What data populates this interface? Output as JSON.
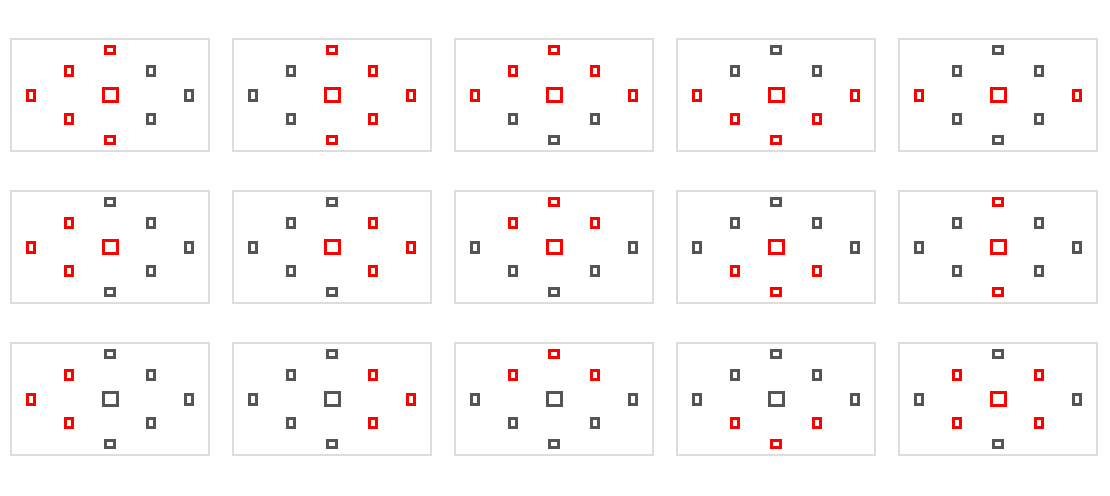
{
  "colors": {
    "active": "#ff0000",
    "inactive": "#555555",
    "panel_border": "#dddddd",
    "background": "#ffffff"
  },
  "point_names": [
    "top",
    "upper-left",
    "upper-right",
    "left",
    "center",
    "right",
    "lower-left",
    "lower-right",
    "bottom"
  ],
  "panels": [
    {
      "id": 1,
      "active": [
        "top",
        "upper-left",
        "left",
        "center",
        "lower-left",
        "bottom"
      ]
    },
    {
      "id": 2,
      "active": [
        "top",
        "upper-right",
        "center",
        "right",
        "lower-right",
        "bottom"
      ]
    },
    {
      "id": 3,
      "active": [
        "top",
        "upper-left",
        "upper-right",
        "left",
        "center",
        "right"
      ]
    },
    {
      "id": 4,
      "active": [
        "left",
        "center",
        "right",
        "lower-left",
        "lower-right",
        "bottom"
      ]
    },
    {
      "id": 5,
      "active": [
        "left",
        "center",
        "right"
      ]
    },
    {
      "id": 6,
      "active": [
        "upper-left",
        "left",
        "center",
        "lower-left"
      ]
    },
    {
      "id": 7,
      "active": [
        "upper-right",
        "center",
        "right",
        "lower-right"
      ]
    },
    {
      "id": 8,
      "active": [
        "top",
        "upper-left",
        "upper-right",
        "center"
      ]
    },
    {
      "id": 9,
      "active": [
        "center",
        "lower-left",
        "lower-right",
        "bottom"
      ]
    },
    {
      "id": 10,
      "active": [
        "top",
        "center",
        "bottom"
      ]
    },
    {
      "id": 11,
      "active": [
        "upper-left",
        "left",
        "lower-left"
      ]
    },
    {
      "id": 12,
      "active": [
        "upper-right",
        "right",
        "lower-right"
      ]
    },
    {
      "id": 13,
      "active": [
        "top",
        "upper-left",
        "upper-right"
      ]
    },
    {
      "id": 14,
      "active": [
        "lower-left",
        "lower-right",
        "bottom"
      ]
    },
    {
      "id": 15,
      "active": [
        "upper-left",
        "upper-right",
        "center",
        "lower-left",
        "lower-right"
      ]
    }
  ]
}
